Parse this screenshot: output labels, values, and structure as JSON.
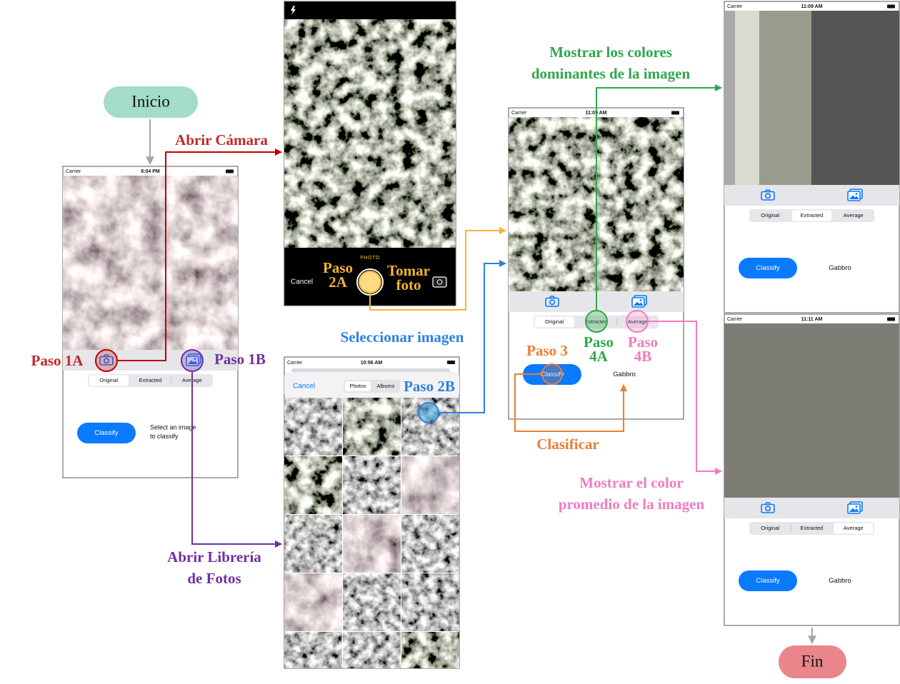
{
  "start": "Inicio",
  "end": "Fin",
  "screens": {
    "home": {
      "carrier": "Carrier",
      "time": "8:04 PM",
      "segments": [
        "Original",
        "Extracted",
        "Average"
      ],
      "selected": 0,
      "button": "Classify",
      "result": [
        "Select an image",
        "to classify"
      ]
    },
    "camera": {
      "mode": "PHOTO",
      "cancel": "Cancel"
    },
    "library": {
      "carrier": "Carrier",
      "time": "10:56 AM",
      "cancel": "Cancel",
      "tabs": [
        "Photos",
        "Albums"
      ]
    },
    "classified": {
      "carrier": "Carrier",
      "time": "11:09 AM",
      "segments": [
        "Original",
        "Extracted",
        "Average"
      ],
      "selected": 0,
      "button": "Classify",
      "result": [
        "Gabbro"
      ]
    },
    "extracted": {
      "carrier": "Carrier",
      "time": "11:09 AM",
      "segments": [
        "Original",
        "Extracted",
        "Average"
      ],
      "selected": 1,
      "button": "Classify",
      "result": [
        "Gabbro"
      ]
    },
    "average": {
      "carrier": "Carrier",
      "time": "11:11 AM",
      "segments": [
        "Original",
        "Extracted",
        "Average"
      ],
      "selected": 2,
      "button": "Classify",
      "result": [
        "Gabbro"
      ]
    }
  },
  "labels": {
    "paso_1a": [
      "Paso 1A"
    ],
    "paso_1b": [
      "Paso 1B"
    ],
    "abrir_camara": [
      "Abrir Cámara"
    ],
    "abrir_libreria": [
      "Abrir Librería",
      "de Fotos"
    ],
    "paso_2a": [
      "Paso",
      "2A"
    ],
    "tomar_foto": [
      "Tomar",
      "foto"
    ],
    "seleccionar": [
      "Seleccionar imagen"
    ],
    "paso_2b": [
      "Paso 2B"
    ],
    "paso_3": [
      "Paso 3"
    ],
    "paso_4a": [
      "Paso",
      "4A"
    ],
    "paso_4b": [
      "Paso",
      "4B"
    ],
    "clasificar": [
      "Clasificar"
    ],
    "mostrar_dominantes": [
      "Mostrar los colores",
      "dominantes de la imagen"
    ],
    "mostrar_promedio": [
      "Mostrar el color",
      "promedio de la imagen"
    ]
  }
}
